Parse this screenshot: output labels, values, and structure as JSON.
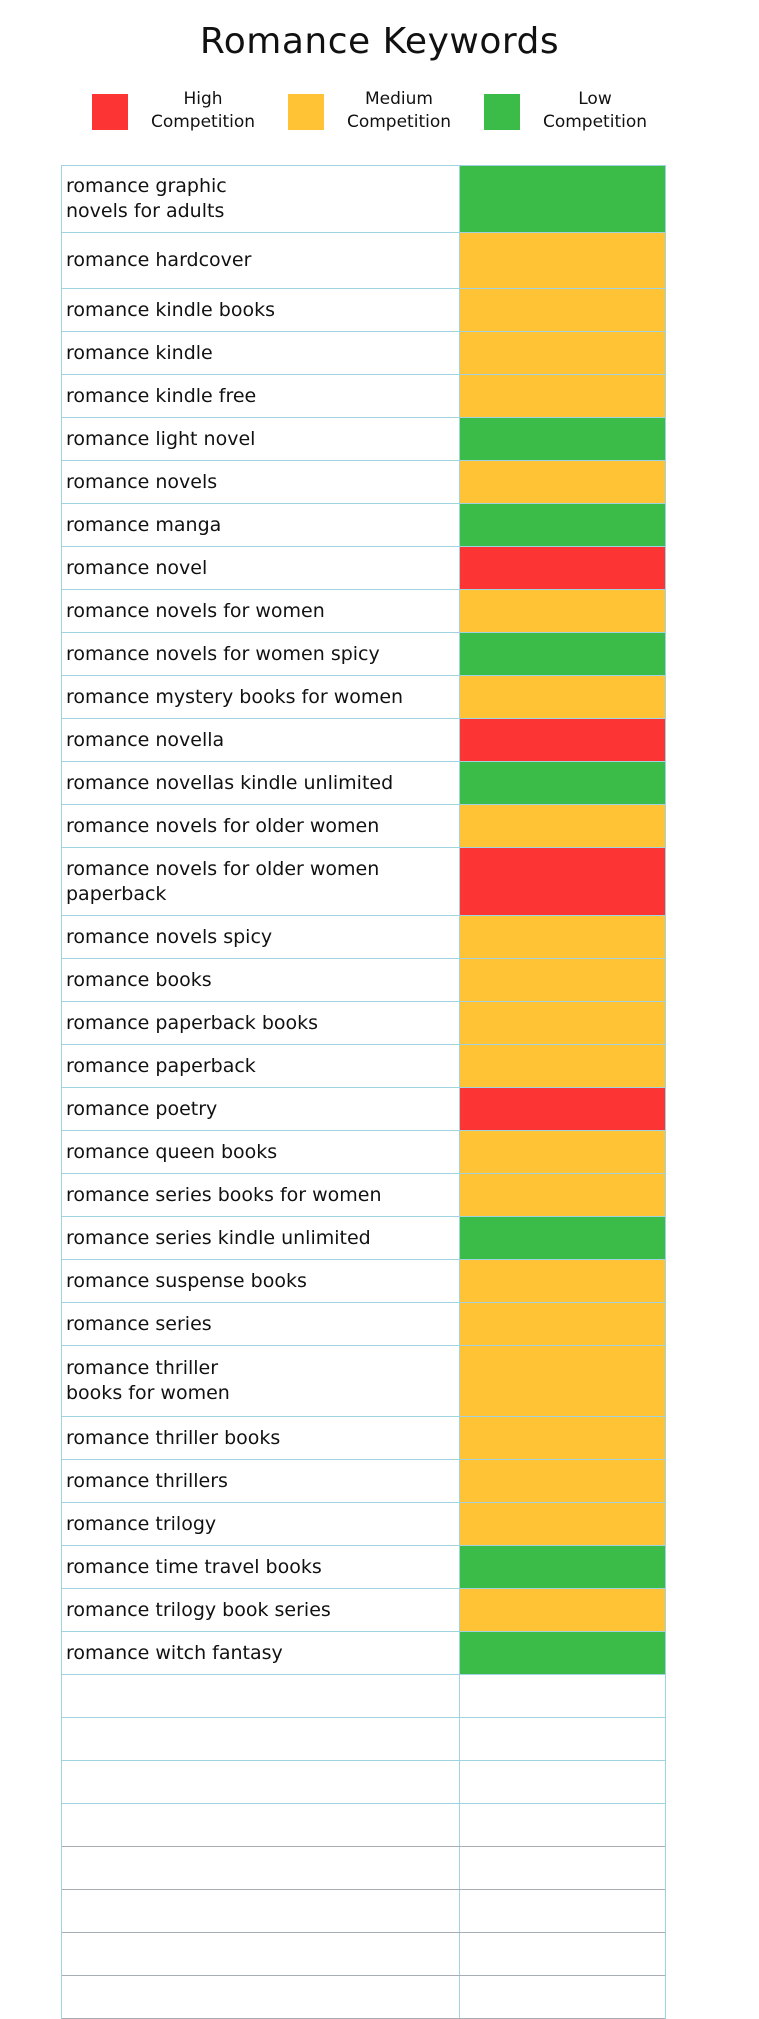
{
  "title": "Romance Keywords",
  "colors": {
    "high": "#fc3434",
    "medium": "#ffc335",
    "low": "#3bbc48"
  },
  "legend": [
    {
      "level": "high",
      "label": "High\nCompetition"
    },
    {
      "level": "medium",
      "label": "Medium\nCompetition"
    },
    {
      "level": "low",
      "label": "Low\nCompetition"
    }
  ],
  "rows": [
    {
      "keyword": "romance graphic\n  novels for adults",
      "competition": "low"
    },
    {
      "keyword": "romance hardcover",
      "competition": "medium"
    },
    {
      "keyword": "romance kindle books",
      "competition": "medium"
    },
    {
      "keyword": "romance kindle",
      "competition": "medium"
    },
    {
      "keyword": "romance kindle free",
      "competition": "medium"
    },
    {
      "keyword": "romance light novel",
      "competition": "low"
    },
    {
      "keyword": "romance novels",
      "competition": "medium"
    },
    {
      "keyword": "romance manga",
      "competition": "low"
    },
    {
      "keyword": "romance novel",
      "competition": "high"
    },
    {
      "keyword": "romance novels for women",
      "competition": "medium"
    },
    {
      "keyword": "romance novels for women spicy",
      "competition": "low"
    },
    {
      "keyword": "romance mystery books for women",
      "competition": "medium"
    },
    {
      "keyword": "romance novella",
      "competition": "high"
    },
    {
      "keyword": "romance novellas kindle unlimited",
      "competition": "low"
    },
    {
      "keyword": "romance novels for older women",
      "competition": "medium"
    },
    {
      "keyword": "romance novels for older women\npaperback",
      "competition": "high"
    },
    {
      "keyword": "romance novels spicy",
      "competition": "medium"
    },
    {
      "keyword": "romance books",
      "competition": "medium"
    },
    {
      "keyword": "romance paperback books",
      "competition": "medium"
    },
    {
      "keyword": "romance paperback",
      "competition": "medium"
    },
    {
      "keyword": "romance poetry",
      "competition": "high"
    },
    {
      "keyword": "romance queen books",
      "competition": "medium"
    },
    {
      "keyword": "romance series books for women",
      "competition": "medium"
    },
    {
      "keyword": "romance series kindle unlimited",
      "competition": "low"
    },
    {
      "keyword": "romance suspense books",
      "competition": "medium"
    },
    {
      "keyword": "romance series",
      "competition": "medium"
    },
    {
      "keyword": "romance thriller\n  books for women",
      "competition": "medium"
    },
    {
      "keyword": "romance thriller books",
      "competition": "medium"
    },
    {
      "keyword": "romance thrillers",
      "competition": "medium"
    },
    {
      "keyword": "romance trilogy",
      "competition": "medium"
    },
    {
      "keyword": "romance time travel books",
      "competition": "low"
    },
    {
      "keyword": "romance trilogy book series",
      "competition": "medium"
    },
    {
      "keyword": "romance witch fantasy",
      "competition": "low"
    },
    {
      "keyword": "",
      "competition": "empty"
    },
    {
      "keyword": "",
      "competition": "empty"
    },
    {
      "keyword": "",
      "competition": "empty"
    },
    {
      "keyword": "",
      "competition": "empty"
    },
    {
      "keyword": "",
      "competition": "empty"
    },
    {
      "keyword": "",
      "competition": "empty"
    },
    {
      "keyword": "",
      "competition": "empty"
    },
    {
      "keyword": "",
      "competition": "empty"
    }
  ]
}
